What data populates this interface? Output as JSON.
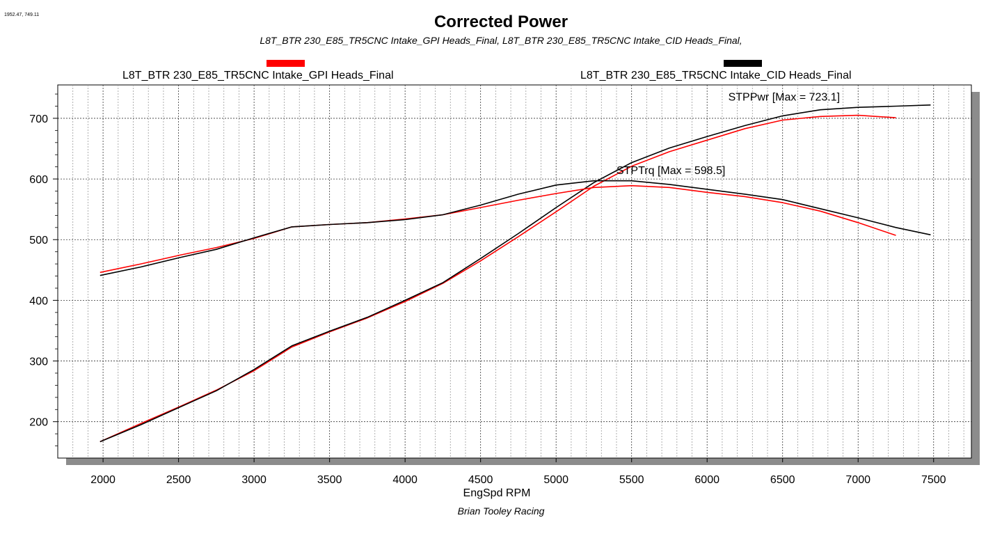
{
  "chart_data": {
    "type": "line",
    "title": "Corrected Power",
    "subtitle": "L8T_BTR 230_E85_TR5CNC Intake_GPI Heads_Final, L8T_BTR 230_E85_TR5CNC Intake_CID Heads_Final,",
    "cursor_readout": "1952.47, 749.11",
    "xlabel": "EngSpd RPM",
    "credit": "Brian Tooley Racing",
    "xlim": [
      1700,
      7750
    ],
    "ylim": [
      140,
      755
    ],
    "x_ticks": [
      2000,
      2500,
      3000,
      3500,
      4000,
      4500,
      5000,
      5500,
      6000,
      6500,
      7000,
      7500
    ],
    "y_ticks": [
      200,
      300,
      400,
      500,
      600,
      700
    ],
    "grid": true,
    "legend": {
      "placement": "top",
      "entries": [
        {
          "label": "L8T_BTR 230_E85_TR5CNC Intake_GPI Heads_Final",
          "color": "#ff0000"
        },
        {
          "label": "L8T_BTR 230_E85_TR5CNC Intake_CID Heads_Final",
          "color": "#000000"
        }
      ]
    },
    "annotations": [
      {
        "text": "STPPwr [Max = 723.1]",
        "x": 6140,
        "y": 729
      },
      {
        "text": "STPTrq [Max = 598.5]",
        "x": 5400,
        "y": 608
      }
    ],
    "series": [
      {
        "name": "STPPwr",
        "run": "GPI",
        "color": "#ff0000",
        "x": [
          1980,
          2250,
          2500,
          2750,
          3000,
          3250,
          3500,
          3750,
          4000,
          4250,
          4500,
          4750,
          5000,
          5250,
          5500,
          5750,
          6000,
          6250,
          6500,
          6750,
          7000,
          7250
        ],
        "y": [
          167,
          197,
          224,
          252,
          284,
          323,
          348,
          371,
          398,
          428,
          465,
          505,
          546,
          588,
          621,
          645,
          664,
          683,
          697,
          703,
          705,
          701
        ]
      },
      {
        "name": "STPPwr",
        "run": "CID",
        "color": "#000000",
        "x": [
          1980,
          2250,
          2500,
          2750,
          3000,
          3250,
          3500,
          3750,
          4000,
          4250,
          4500,
          4750,
          5000,
          5250,
          5500,
          5750,
          6000,
          6250,
          6500,
          6750,
          7000,
          7250,
          7480
        ],
        "y": [
          167,
          195,
          223,
          251,
          286,
          325,
          349,
          372,
          400,
          429,
          469,
          510,
          553,
          594,
          627,
          651,
          670,
          688,
          704,
          714,
          718,
          720,
          722
        ]
      },
      {
        "name": "STPTrq",
        "run": "GPI",
        "color": "#ff0000",
        "x": [
          1980,
          2250,
          2500,
          2750,
          3000,
          3250,
          3500,
          3750,
          4000,
          4250,
          4500,
          4750,
          5000,
          5250,
          5500,
          5750,
          6000,
          6250,
          6500,
          6750,
          7000,
          7250
        ],
        "y": [
          446,
          460,
          474,
          487,
          502,
          521,
          525,
          528,
          534,
          541,
          553,
          565,
          576,
          586,
          589,
          586,
          578,
          571,
          561,
          547,
          528,
          507
        ]
      },
      {
        "name": "STPTrq",
        "run": "CID",
        "color": "#000000",
        "x": [
          1980,
          2250,
          2500,
          2750,
          3000,
          3250,
          3500,
          3750,
          4000,
          4250,
          4500,
          4750,
          5000,
          5250,
          5500,
          5750,
          6000,
          6250,
          6500,
          6750,
          7000,
          7250,
          7480
        ],
        "y": [
          441,
          455,
          470,
          484,
          503,
          521,
          525,
          528,
          533,
          541,
          557,
          575,
          590,
          597,
          597,
          591,
          583,
          575,
          566,
          551,
          536,
          520,
          508
        ]
      }
    ]
  }
}
